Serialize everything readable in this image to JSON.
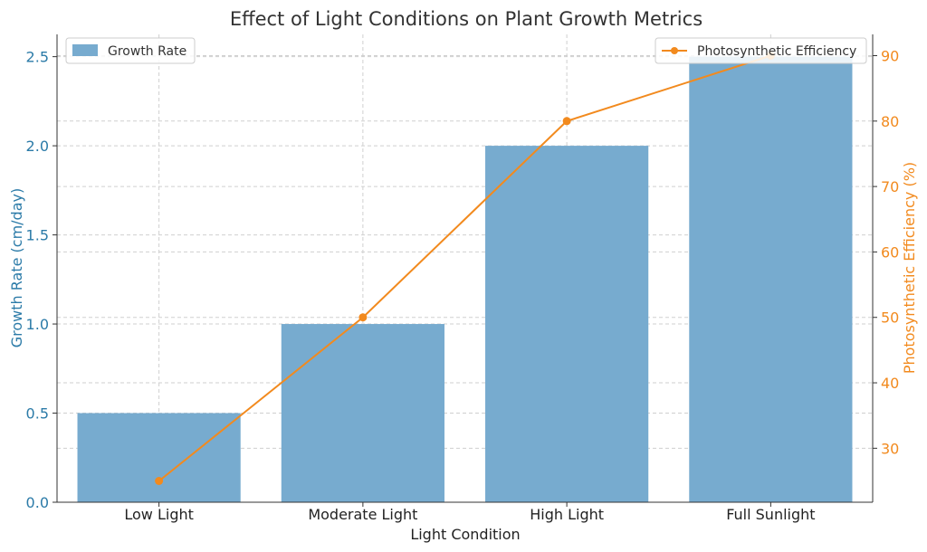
{
  "chart_data": {
    "type": "bar+line",
    "title": "Effect of Light Conditions on Plant Growth Metrics",
    "xlabel": "Light Condition",
    "categories": [
      "Low Light",
      "Moderate Light",
      "High Light",
      "Full Sunlight"
    ],
    "series": [
      {
        "name": "Growth Rate",
        "type": "bar",
        "axis": "left",
        "color": "#77abcf",
        "values": [
          0.5,
          1.0,
          2.0,
          2.5
        ]
      },
      {
        "name": "Photosynthetic Efficiency",
        "type": "line",
        "axis": "right",
        "color": "#f28a1e",
        "values": [
          25,
          50,
          80,
          90
        ]
      }
    ],
    "y_left": {
      "label": "Growth Rate (cm/day)",
      "color": "#2c7ba8",
      "ylim": [
        0,
        2.625
      ],
      "ticks": [
        "0.0",
        "0.5",
        "1.0",
        "1.5",
        "2.0",
        "2.5"
      ]
    },
    "y_right": {
      "label": "Photosynthetic Efficiency (%)",
      "color": "#f28a1e",
      "ylim": [
        21.75,
        93.25
      ],
      "ticks": [
        "30",
        "40",
        "50",
        "60",
        "70",
        "80",
        "90"
      ]
    },
    "grid": true,
    "legend_left_position": "top-left",
    "legend_right_position": "top-right"
  }
}
